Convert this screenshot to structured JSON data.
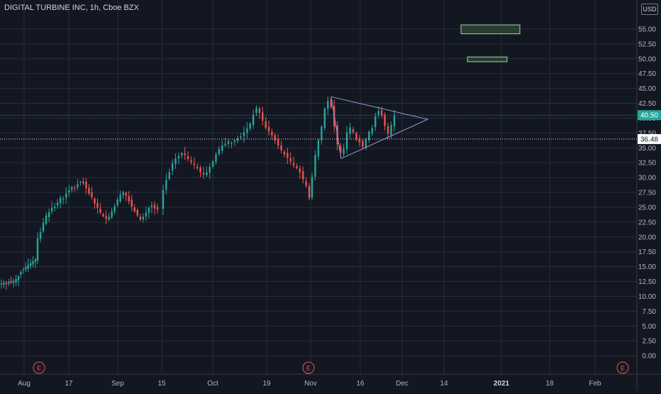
{
  "header": {
    "title": "DIGITAL TURBINE INC, 1h, Cboe BZX",
    "currency_button": "USD"
  },
  "colors": {
    "background": "#131722",
    "grid": "#2a2e39",
    "text": "#b2b5be",
    "up": "#26a69a",
    "down": "#ef5350",
    "last_price_line": "#26a69a",
    "level_line": "#ffffff",
    "triangle": "#9598d6",
    "rect_fill": "#2f4a35",
    "rect_stroke": "#9fd69f",
    "earnings": "#ef5350"
  },
  "chart_data": {
    "type": "candlestick",
    "title": "DIGITAL TURBINE INC, 1h, Cboe BZX",
    "x_tick_labels": [
      "Aug",
      "17",
      "Sep",
      "15",
      "Oct",
      "19",
      "Nov",
      "16",
      "Dec",
      "14",
      "2021",
      "18",
      "Feb"
    ],
    "y_tick_labels": [
      "55.00",
      "52.50",
      "50.00",
      "47.50",
      "45.00",
      "42.50",
      "40.00",
      "37.50",
      "35.00",
      "32.50",
      "30.00",
      "27.50",
      "25.00",
      "22.50",
      "20.00",
      "17.50",
      "15.00",
      "12.50",
      "10.00",
      "7.50",
      "5.00",
      "2.50",
      "0.00"
    ],
    "ylim": [
      -1.3,
      57.5
    ],
    "grid": true,
    "last_price": 40.5,
    "last_price_label": "40.50",
    "level": 36.48,
    "level_label": "36.48",
    "earnings_marker_label": "E",
    "earnings_markers_at": [
      "Aug 5",
      "Nov 2",
      "Feb"
    ],
    "series": [
      {
        "values": [
          12.2,
          12.3,
          12.1,
          12.4,
          12.3,
          12.6,
          12.9,
          13.4,
          14.1,
          14.5,
          14.9,
          15.3,
          15.6,
          15.9,
          16.2,
          19.8,
          20.8,
          22.4,
          23.6,
          24.2,
          24.9,
          25.1,
          25.8,
          26.6,
          26.4,
          27.3,
          27.9,
          28.4,
          28.2,
          28.9,
          29.3,
          29.0,
          28.2,
          27.3,
          26.7,
          25.6,
          24.9,
          24.1,
          23.5,
          23.1,
          23.4,
          24.3,
          25.2,
          26.3,
          27.1,
          27.5,
          26.9,
          26.0,
          25.1,
          24.3,
          23.6,
          22.9,
          23.4,
          24.1,
          24.9,
          25.3,
          24.8,
          24.6,
          27.9,
          29.6,
          30.9,
          32.4,
          33.2,
          33.6,
          34.1,
          33.8,
          33.1,
          32.6,
          32.1,
          31.6,
          30.9,
          30.5,
          30.9,
          31.8,
          32.7,
          33.9,
          34.8,
          35.4,
          35.7,
          36.1,
          35.8,
          36.3,
          36.6,
          36.9,
          37.6,
          38.3,
          39.1,
          40.6,
          41.7,
          40.9,
          39.6,
          38.4,
          37.8,
          37.1,
          36.2,
          35.4,
          34.6,
          33.9,
          33.3,
          32.7,
          32.1,
          31.6,
          30.9,
          29.7,
          28.6,
          26.6,
          30.1,
          33.8,
          36.3,
          38.6,
          41.6,
          42.9,
          41.8,
          38.6,
          35.6,
          34.2,
          34.9,
          37.6,
          38.4,
          37.6,
          36.5,
          35.9,
          35.2,
          36.4,
          37.7,
          38.3,
          40.3,
          41.2,
          40.4,
          38.7,
          37.4,
          38.8,
          40.5
        ]
      }
    ],
    "triangle_apex_price": 39.8,
    "triangle_upper_start_price": 43.6,
    "triangle_lower_start_price": 33.2,
    "zones": [
      {
        "from": 54.2,
        "to": 55.7
      },
      {
        "from": 49.5,
        "to": 50.3
      }
    ]
  }
}
